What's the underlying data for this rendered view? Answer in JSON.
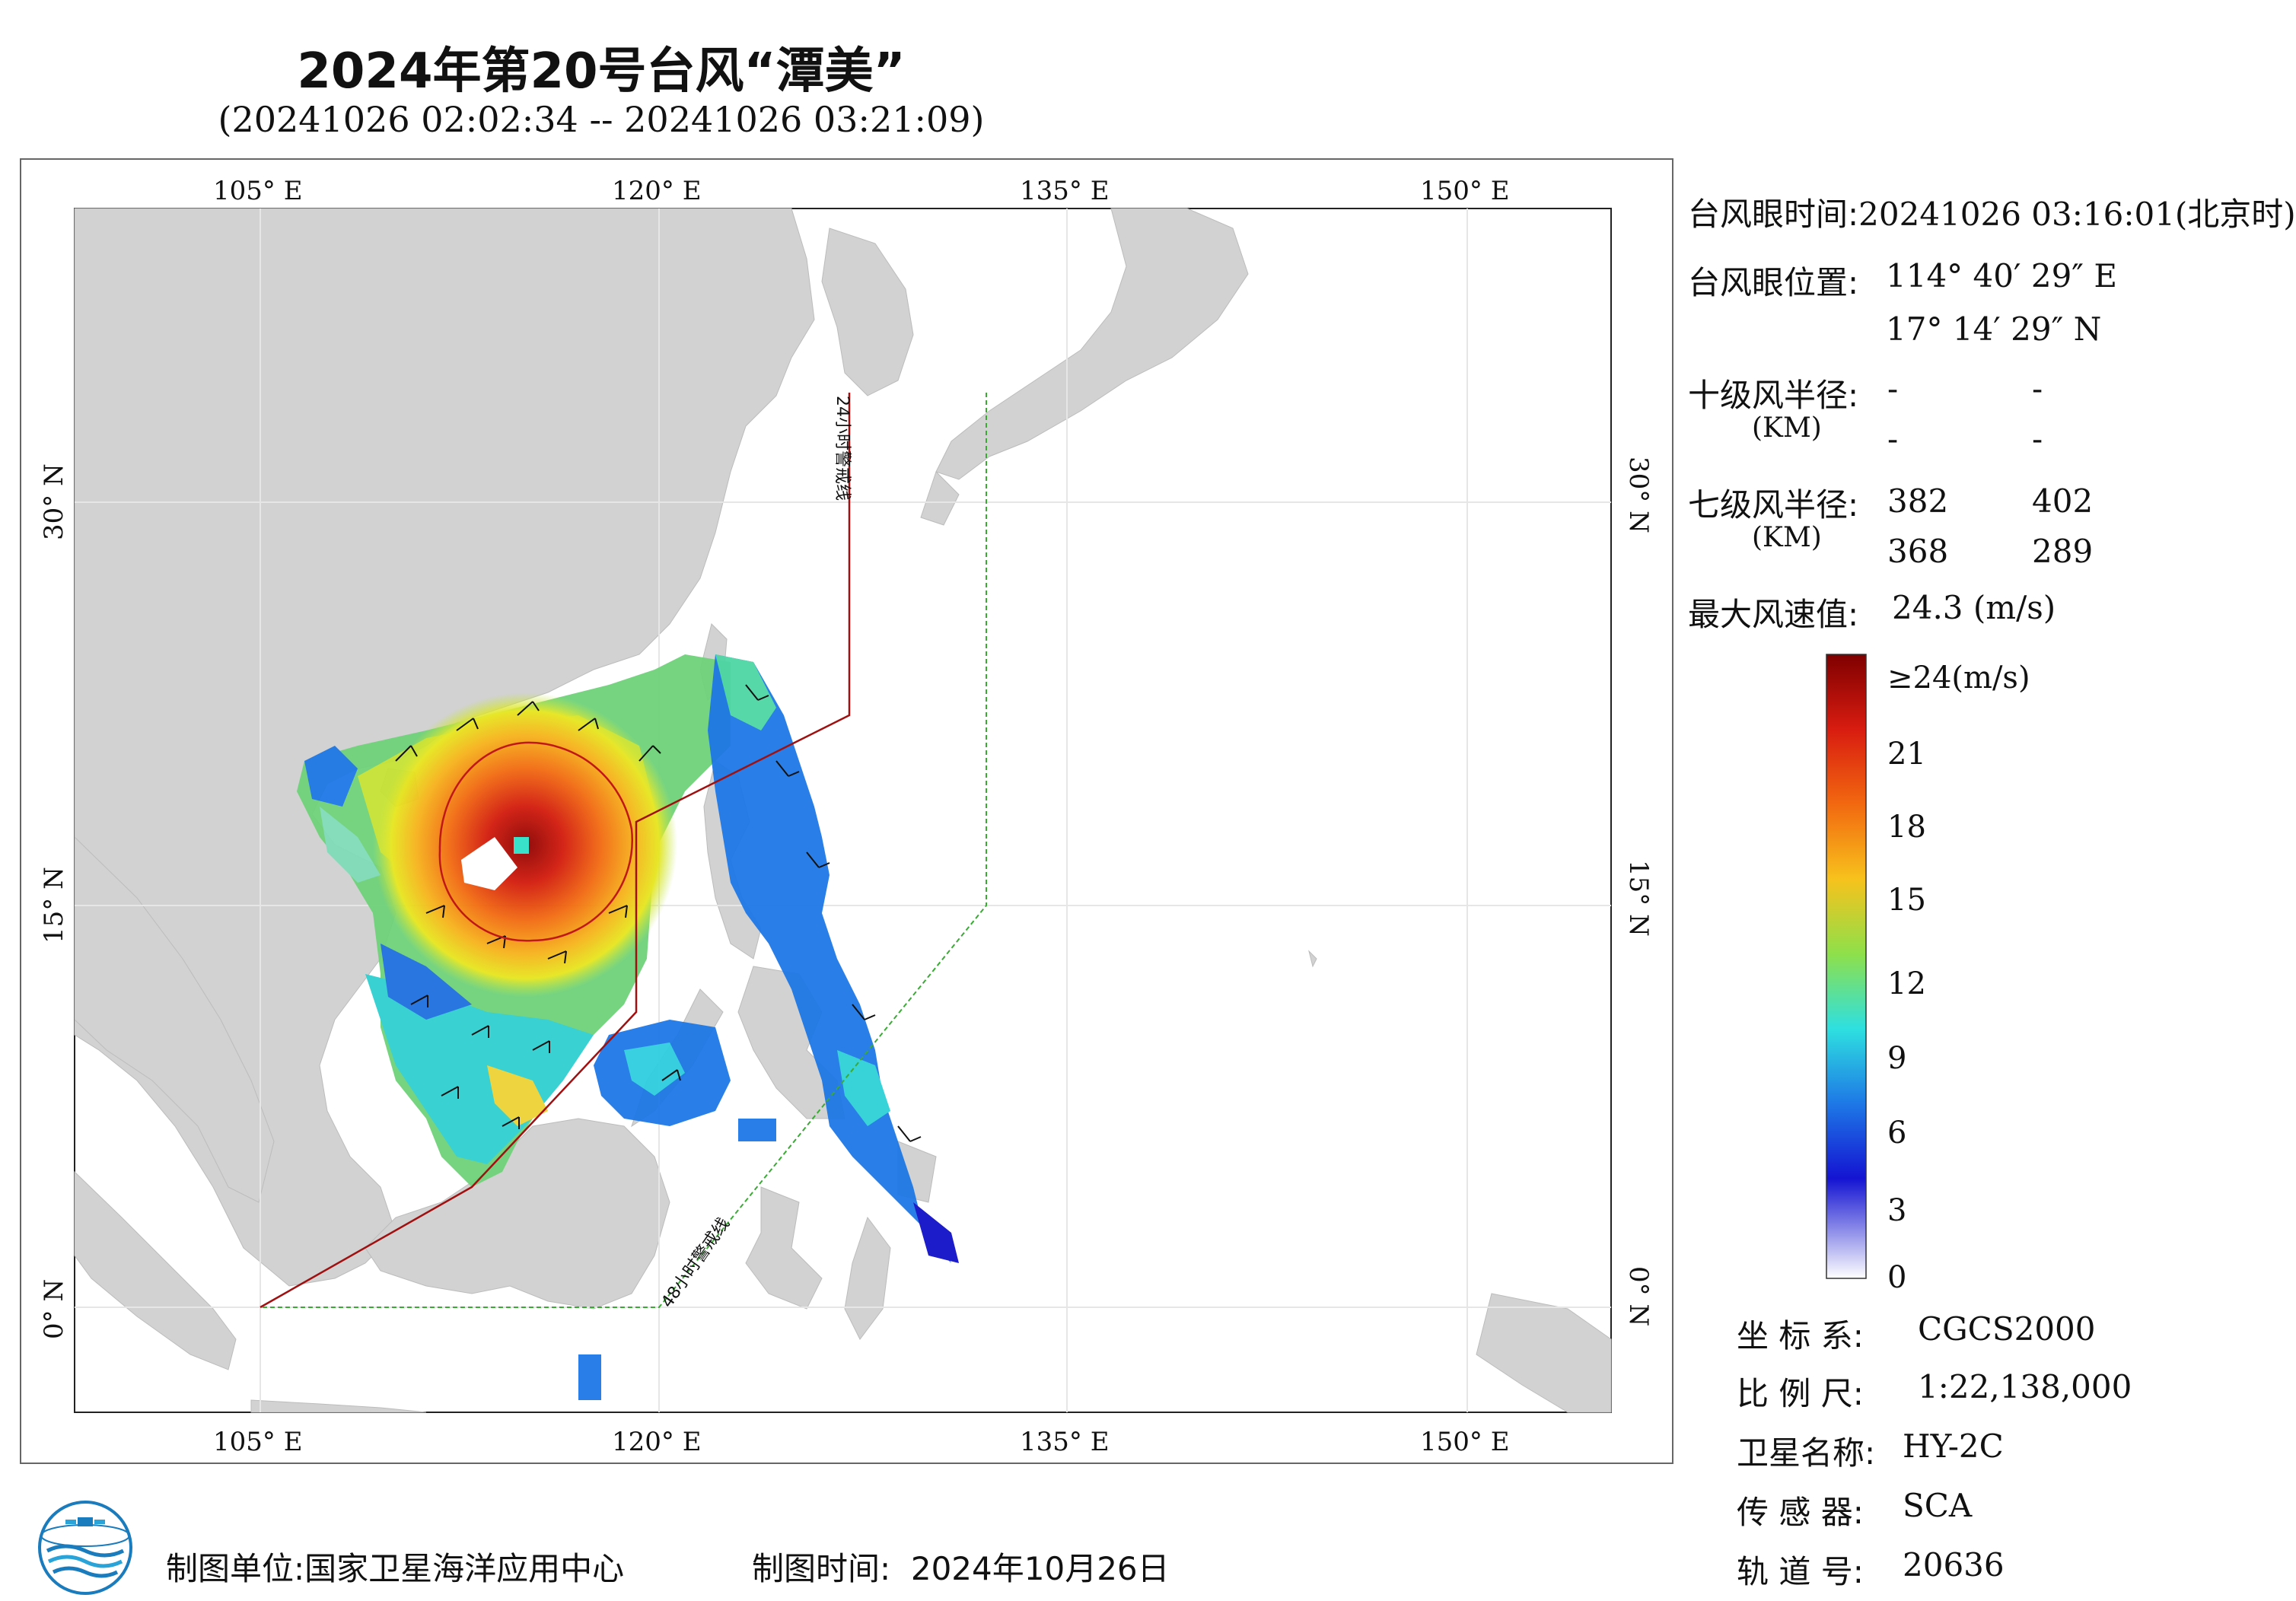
{
  "title": "2024年第20号台风“潭美”",
  "subtitle": "(20241026 02:02:34 -- 20241026 03:21:09)",
  "map": {
    "lon_top": [
      "105° E",
      "120° E",
      "135° E",
      "150° E"
    ],
    "lon_bottom": [
      "105° E",
      "120° E",
      "135° E",
      "150° E"
    ],
    "lat_left": [
      "30° N",
      "15° N",
      "0° N"
    ],
    "lat_right": [
      "30° N",
      "15° N",
      "0° N"
    ],
    "line_24h_label": "24小时警戒线",
    "line_48h_label": "48小时警戒线",
    "colors": {
      "land": "#d2d2d2",
      "sea": "#ffffff",
      "warning_24h": "#a01010",
      "warning_48h": "#3aaa35",
      "wind_radius": "#c01818"
    }
  },
  "info": {
    "eye_time_label": "台风眼时间:",
    "eye_time_value": "20241026 03:16:01(北京时)",
    "eye_pos_label": "台风眼位置:",
    "eye_lon": "114° 40′ 29″ E",
    "eye_lat": "17° 14′ 29″ N",
    "r10_label": "十级风半径:",
    "r10_unit": "(KM)",
    "r10_values": [
      "-",
      "-",
      "-",
      "-"
    ],
    "r7_label": "七级风半径:",
    "r7_unit": "(KM)",
    "r7_values": [
      "382",
      "402",
      "368",
      "289"
    ],
    "max_wind_label": "最大风速值:",
    "max_wind_value": "24.3  (m/s)"
  },
  "colorbar": {
    "labels": [
      "≥24(m/s)",
      "21",
      "18",
      "15",
      "12",
      "9",
      "6",
      "3",
      "0"
    ]
  },
  "meta": {
    "crs_label": "坐 标 系:",
    "crs_value": "CGCS2000",
    "scale_label": "比 例 尺:",
    "scale_value": "1:22,138,000",
    "satellite_label": "卫星名称:",
    "satellite_value": "HY-2C",
    "sensor_label": "传 感 器:",
    "sensor_value": "SCA",
    "orbit_label": "轨 道 号:",
    "orbit_value": "20636"
  },
  "footer": {
    "producer_label": "制图单位:",
    "producer_value": "国家卫星海洋应用中心",
    "date_label": "制图时间:",
    "date_value": "2024年10月26日"
  }
}
